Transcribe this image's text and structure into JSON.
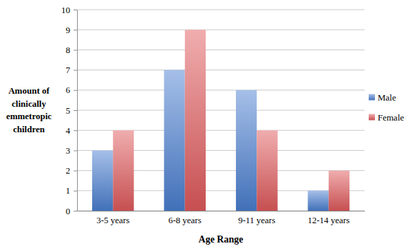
{
  "chart_data": {
    "type": "bar",
    "x_label": "Age Range",
    "y_label": "Amount of clinically emmetropic children",
    "categories": [
      "3-5 years",
      "6-8 years",
      "9-11 years",
      "12-14 years"
    ],
    "series": [
      {
        "name": "Male",
        "color": "#4a7fd0",
        "values": [
          3,
          7,
          6,
          1
        ]
      },
      {
        "name": "Female",
        "color": "#e05a5c",
        "values": [
          4,
          9,
          4,
          2
        ]
      }
    ],
    "ylim": [
      0,
      10
    ],
    "yticks": [
      0,
      1,
      2,
      3,
      4,
      5,
      6,
      7,
      8,
      9,
      10
    ],
    "grid": true,
    "legend": "right"
  }
}
